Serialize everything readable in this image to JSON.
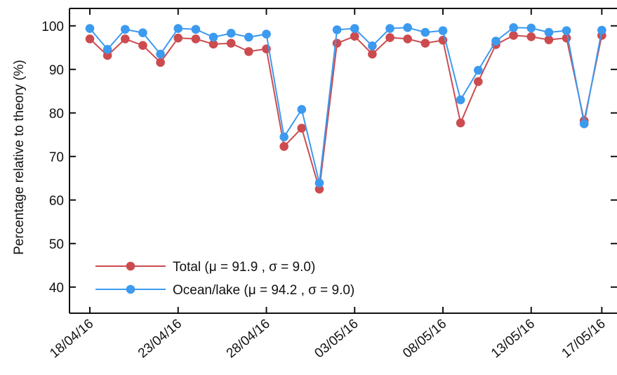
{
  "chart_data": {
    "type": "line",
    "ylabel": "Percentage relative to theory (%)",
    "ylim": [
      34,
      104
    ],
    "yticks": [
      40,
      50,
      60,
      70,
      80,
      90,
      100
    ],
    "x_tick_labels": [
      {
        "day": 0,
        "label": "18/04/16"
      },
      {
        "day": 5,
        "label": "23/04/16"
      },
      {
        "day": 10,
        "label": "28/04/16"
      },
      {
        "day": 15,
        "label": "03/05/16"
      },
      {
        "day": 20,
        "label": "08/05/16"
      },
      {
        "day": 25,
        "label": "13/05/16"
      },
      {
        "day": 29,
        "label": "17/05/16"
      }
    ],
    "xlim": [
      -1,
      29.1
    ],
    "grid": false,
    "legend_position": "bottom-left",
    "series": [
      {
        "name": "Total (μ = 91.9 , σ = 9.0)",
        "color": "#cc4b4f",
        "x": [
          0,
          1,
          2,
          3,
          4,
          5,
          6,
          7,
          8,
          9,
          10,
          11,
          12,
          13,
          14,
          15,
          16,
          17,
          18,
          19,
          20,
          21,
          22,
          23,
          24,
          25,
          26,
          27,
          28,
          29
        ],
        "values": [
          97.0,
          93.2,
          97.0,
          95.5,
          91.6,
          97.2,
          97.0,
          95.8,
          96.0,
          94.1,
          94.7,
          72.3,
          76.5,
          62.5,
          96.0,
          97.6,
          93.5,
          97.3,
          97.0,
          96.0,
          96.7,
          77.7,
          87.2,
          95.7,
          97.8,
          97.5,
          96.8,
          97.2,
          78.2,
          97.8
        ]
      },
      {
        "name": "Ocean/lake (μ = 94.2 , σ = 9.0)",
        "color": "#3c9aef",
        "x": [
          0,
          1,
          2,
          3,
          4,
          5,
          6,
          7,
          8,
          9,
          10,
          11,
          12,
          13,
          14,
          15,
          16,
          17,
          18,
          19,
          20,
          21,
          22,
          23,
          24,
          25,
          26,
          27,
          28,
          29
        ],
        "values": [
          99.4,
          94.6,
          99.2,
          98.4,
          93.5,
          99.4,
          99.2,
          97.4,
          98.3,
          97.4,
          98.1,
          74.5,
          80.8,
          63.9,
          99.1,
          99.4,
          95.4,
          99.4,
          99.6,
          98.5,
          98.9,
          83.0,
          89.8,
          96.5,
          99.6,
          99.5,
          98.5,
          98.9,
          77.5,
          99.0
        ]
      }
    ]
  }
}
